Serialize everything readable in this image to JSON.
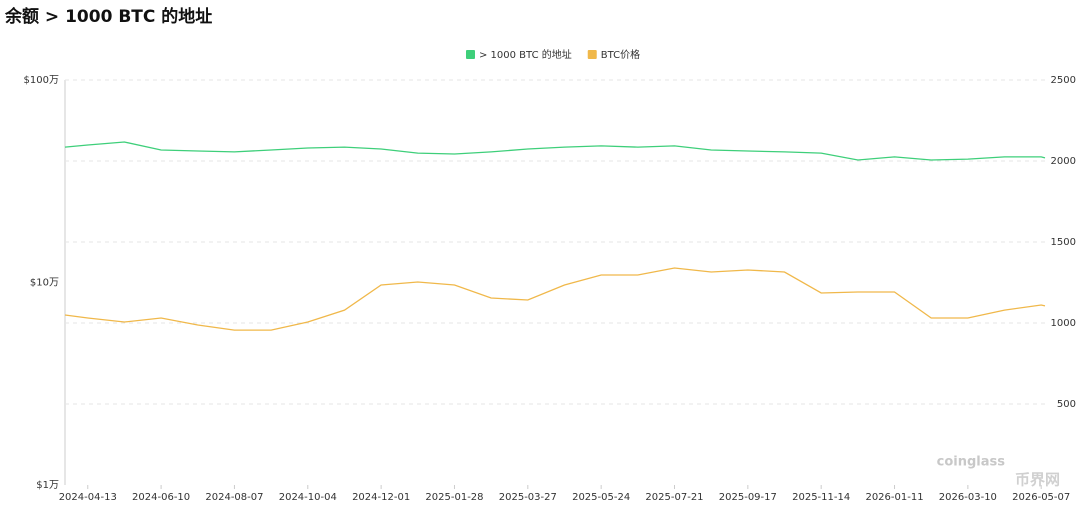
{
  "chart_data": {
    "type": "line",
    "title": "余额 > 1000 BTC 的地址",
    "x": [
      "2024-03-26",
      "2024-04-13",
      "2024-05-12",
      "2024-06-10",
      "2024-07-09",
      "2024-08-07",
      "2024-09-05",
      "2024-10-04",
      "2024-11-02",
      "2024-12-01",
      "2024-12-30",
      "2025-01-28",
      "2025-02-26",
      "2025-03-27",
      "2025-04-25",
      "2025-05-24",
      "2025-06-22",
      "2025-07-21",
      "2025-08-19",
      "2025-09-17",
      "2025-10-16",
      "2025-11-14",
      "2025-12-13",
      "2026-01-11",
      "2026-02-09",
      "2026-03-10",
      "2026-04-08",
      "2026-05-07",
      "2026-05-10"
    ],
    "xlim": [
      "2024-03-26",
      "2026-05-10"
    ],
    "xticks": [
      "2024-04-13",
      "2024-06-10",
      "2024-08-07",
      "2024-10-04",
      "2024-12-01",
      "2025-01-28",
      "2025-03-27",
      "2025-05-24",
      "2025-07-21",
      "2025-09-17",
      "2025-11-14",
      "2026-01-11",
      "2026-03-10",
      "2026-05-07"
    ],
    "series": [
      {
        "name": "> 1000 BTC 的地址",
        "color": "#3ecf7a",
        "axis": "y2",
        "values": [
          2086,
          2099,
          2117,
          2068,
          2062,
          2056,
          2068,
          2080,
          2086,
          2074,
          2049,
          2043,
          2056,
          2074,
          2086,
          2093,
          2086,
          2093,
          2068,
          2062,
          2056,
          2049,
          2006,
          2025,
          2006,
          2012,
          2025,
          2025,
          2019
        ]
      },
      {
        "name": "BTC价格",
        "color": "#f0b84a",
        "axis": "y",
        "values": [
          69100,
          66800,
          63800,
          66800,
          61700,
          58200,
          58200,
          63800,
          73100,
          97200,
          100600,
          97200,
          83800,
          82000,
          97200,
          108900,
          108900,
          117900,
          112700,
          115300,
          112700,
          88700,
          89800,
          89800,
          66800,
          66800,
          73100,
          77400,
          76600
        ]
      }
    ],
    "yscale": "log",
    "ylim": [
      10000,
      1000000
    ],
    "yticks": [
      {
        "value": 10000,
        "label": "$1万"
      },
      {
        "value": 100000,
        "label": "$10万"
      },
      {
        "value": 1000000,
        "label": "$100万"
      }
    ],
    "y2lim": [
      0,
      2500
    ],
    "y2ticks": [
      500,
      1000,
      1500,
      2000,
      2500
    ],
    "grid": true,
    "legend": "top",
    "watermark": "coinglass",
    "watermark2": "币界网"
  }
}
